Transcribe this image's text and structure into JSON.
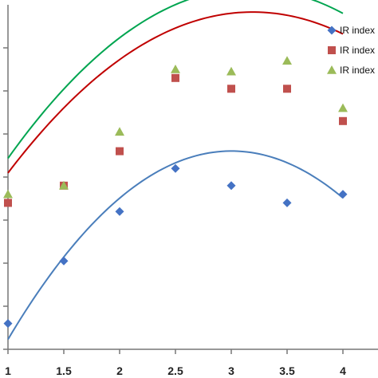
{
  "chart_data": {
    "type": "scatter",
    "title": "",
    "xlabel": "",
    "ylabel": "",
    "xlim": [
      1,
      4.2
    ],
    "ylim": [
      0,
      8
    ],
    "xticks": [
      "1",
      "1.5",
      "2",
      "2.5",
      "3",
      "3.5",
      "4"
    ],
    "yticks_count": 8,
    "grid": false,
    "legend": "top-right",
    "series": [
      {
        "name": "IR index",
        "marker": "diamond",
        "color": "#4472C4",
        "trend_color": "#4A7EBB",
        "x": [
          1,
          1.5,
          2,
          2.5,
          3,
          3.5,
          4
        ],
        "y": [
          0.6,
          2.05,
          3.2,
          4.2,
          3.8,
          3.4,
          3.6
        ],
        "trend": [
          -1.092,
          6.555,
          -5.233
        ]
      },
      {
        "name": "IR index",
        "marker": "square",
        "color": "#C0504D",
        "trend_color": "#C00000",
        "x": [
          1,
          1.5,
          2,
          2.5,
          3,
          3.5,
          4
        ],
        "y": [
          3.4,
          3.8,
          4.6,
          6.3,
          6.05,
          6.05,
          5.3
        ],
        "trend": [
          -0.778,
          4.966,
          -0.093
        ]
      },
      {
        "name": "IR index",
        "marker": "triangle",
        "color": "#9BBB59",
        "trend_color": "#00A550",
        "x": [
          1,
          1.5,
          2,
          2.5,
          3,
          3.5,
          4
        ],
        "y": [
          3.6,
          3.8,
          5.05,
          6.5,
          6.45,
          6.7,
          5.6
        ],
        "trend": [
          -0.838,
          5.312,
          -0.039
        ]
      }
    ]
  }
}
